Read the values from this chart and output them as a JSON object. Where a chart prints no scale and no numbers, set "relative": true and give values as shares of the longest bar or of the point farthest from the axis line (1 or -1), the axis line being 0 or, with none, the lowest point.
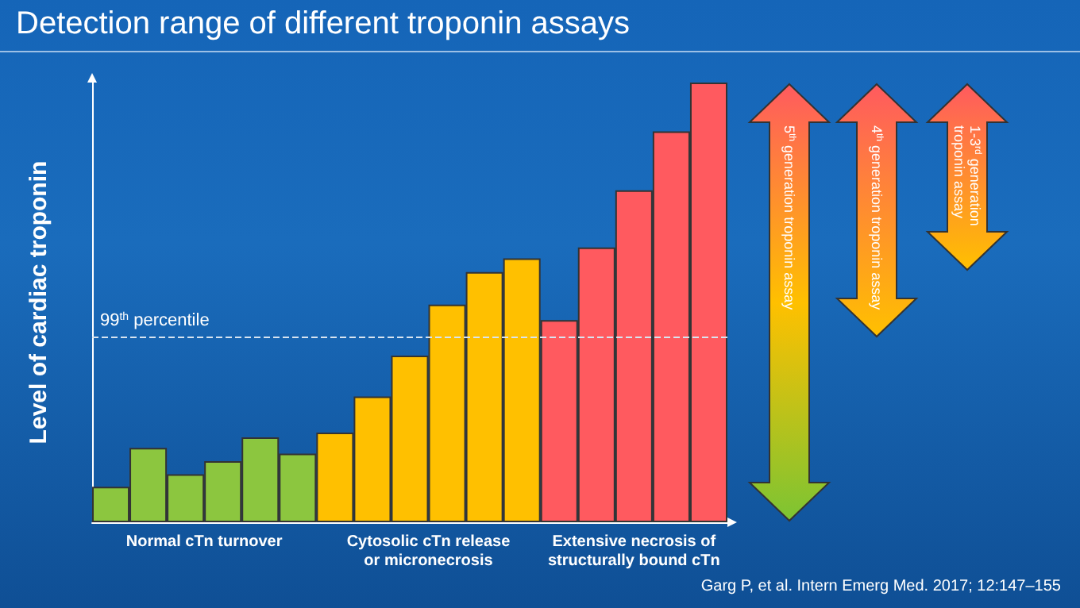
{
  "chart_data": {
    "type": "bar",
    "title": "Detection range of different troponin assays",
    "ylabel": "Level of cardiac troponin",
    "relative": true,
    "categories": [
      null,
      null,
      null,
      null,
      null,
      null,
      null,
      null,
      null,
      null,
      null,
      null,
      null,
      null,
      null,
      null,
      null
    ],
    "values": [
      0.081,
      0.169,
      0.109,
      0.139,
      0.193,
      0.156,
      0.204,
      0.286,
      0.379,
      0.495,
      0.569,
      0.6,
      0.46,
      0.625,
      0.755,
      0.889,
      1
    ],
    "colors": [
      "#8cc63f",
      "#8cc63f",
      "#8cc63f",
      "#8cc63f",
      "#8cc63f",
      "#8cc63f",
      "#ffc000",
      "#ffc000",
      "#ffc000",
      "#ffc000",
      "#ffc000",
      "#ffc000",
      "#ff5a5f",
      "#ff5a5f",
      "#ff5a5f",
      "#ff5a5f",
      "#ff5a5f"
    ],
    "ref_lines": [
      {
        "axis": "y",
        "value": 0.423,
        "label": "99$^{th}$ percentile",
        "color": "#d8e4f0",
        "line_style": "dashed"
      }
    ],
    "annotations": [
      "Normal cTn turnover",
      "Cytosolic cTn release\nor micronecrosis",
      "Extensive necrosis of\nstructurally bound cTn",
      "5$^{th}$ generation troponin assay",
      "4$^{th}$ generation troponin assay",
      "1-3$^{rd}$ generation\ntroponin assay",
      "Garg P, et al. Intern Emerg Med. 2017; 12:147–155"
    ]
  }
}
